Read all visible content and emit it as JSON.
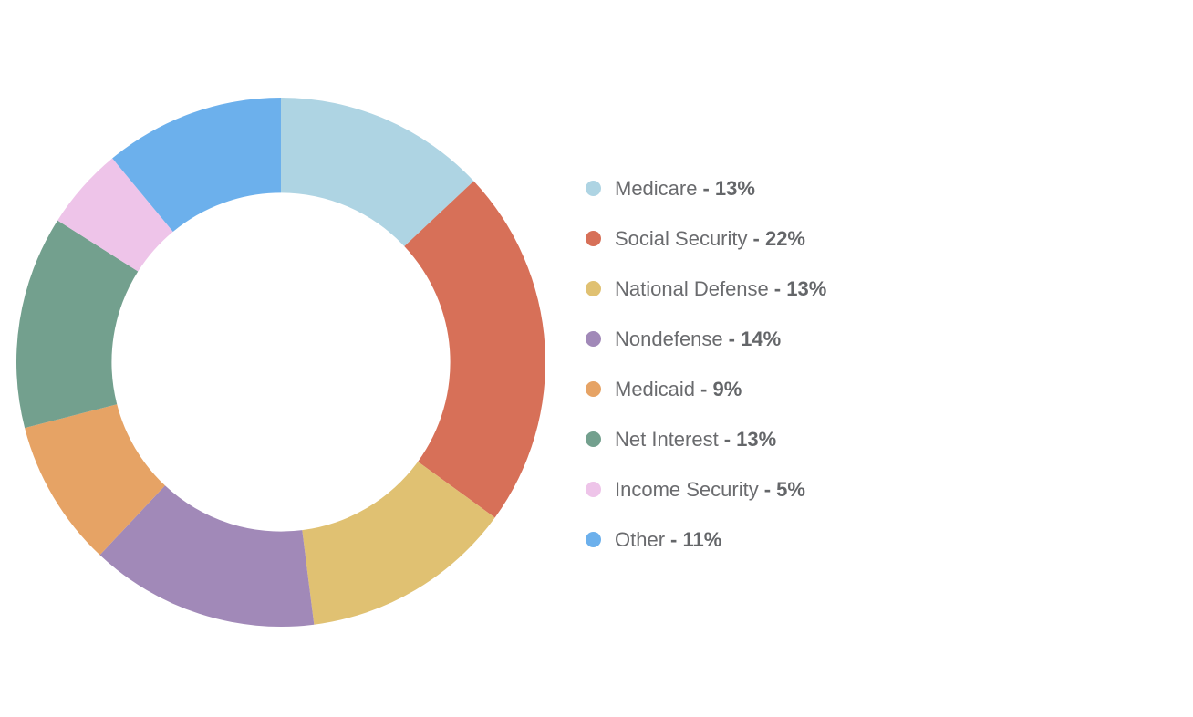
{
  "page": {
    "background_color": "#ffffff"
  },
  "chart_data": {
    "type": "pie",
    "variant": "donut",
    "title": "",
    "start_angle_deg": -90,
    "direction": "clockwise",
    "inner_radius_ratio": 0.64,
    "legend_position": "right",
    "unit": "%",
    "legend_separator": "-",
    "categories": [
      "Medicare",
      "Social Security",
      "National Defense",
      "Nondefense",
      "Medicaid",
      "Net Interest",
      "Income Security",
      "Other"
    ],
    "values": [
      13,
      22,
      13,
      14,
      9,
      13,
      5,
      11
    ],
    "colors": [
      "#aed4e3",
      "#d77058",
      "#e0c172",
      "#a189b8",
      "#e6a365",
      "#73a08e",
      "#eec4e9",
      "#6cb0ec"
    ],
    "legend_text_color": "#6a6b6e"
  }
}
